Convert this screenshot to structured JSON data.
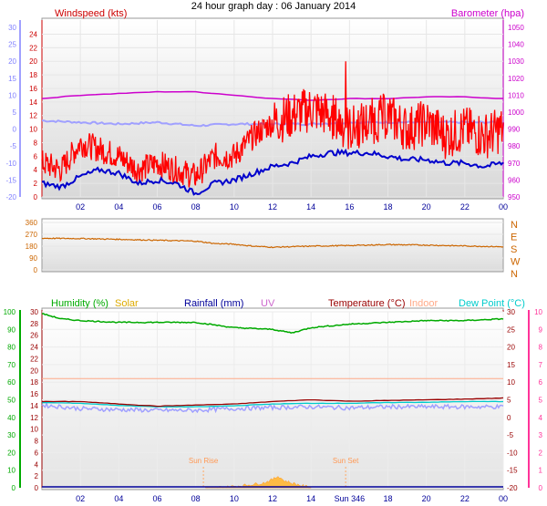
{
  "title": "24 hour graph day : 06 January 2014",
  "colors": {
    "windspeed": "#ff0000",
    "windspeed_avg": "#0000cc",
    "barometer": "#cc00cc",
    "temp_light": "#a0a0ff",
    "direction": "#cc6600",
    "humidity": "#00aa00",
    "solar": "#ffaa33",
    "rainfall": "#000099",
    "uv": "#cc66cc",
    "temperature": "#990000",
    "indoor": "#ffaa88",
    "dewpoint": "#00cccc",
    "axis_green": "#00aa00",
    "axis_pink": "#ff3399"
  },
  "chart_data": [
    {
      "type": "line",
      "panel": "wind-barometer",
      "title": "24 hour graph day : 06 January 2014",
      "x_ticks": [
        "02",
        "04",
        "06",
        "08",
        "10",
        "12",
        "14",
        "16",
        "18",
        "20",
        "22",
        "00"
      ],
      "left_label": "Windspeed (kts)",
      "right_label": "Barometer (hpa)",
      "left_ticks": [
        "0",
        "2",
        "4",
        "6",
        "8",
        "10",
        "12",
        "14",
        "16",
        "18",
        "20",
        "22",
        "24"
      ],
      "left_ticks_outer": [
        "-20",
        "-15",
        "-10",
        "-5",
        "0",
        "5",
        "10",
        "15",
        "20",
        "25",
        "30"
      ],
      "right_ticks": [
        "950",
        "960",
        "970",
        "980",
        "990",
        "1000",
        "1010",
        "1020",
        "1030",
        "1040",
        "1050"
      ],
      "ylim_left": [
        0,
        25
      ],
      "ylim_right": [
        950,
        1050
      ],
      "series": [
        {
          "key": "windspeed_gust",
          "color": "#ff0000",
          "x": [
            0,
            1,
            2,
            3,
            4,
            5,
            6,
            7,
            8,
            9,
            10,
            11,
            12,
            13,
            14,
            15,
            16,
            17,
            18,
            19,
            20,
            21,
            22,
            23,
            24
          ],
          "values": [
            5,
            4,
            8,
            7,
            6,
            4,
            5,
            4,
            3,
            6,
            6,
            9,
            11,
            12,
            13,
            12,
            10,
            11,
            12,
            10,
            11,
            9,
            10,
            9,
            10
          ]
        },
        {
          "key": "windspeed_avg",
          "color": "#0000cc",
          "x": [
            0,
            1,
            2,
            3,
            4,
            5,
            6,
            7,
            8,
            9,
            10,
            11,
            12,
            13,
            14,
            15,
            16,
            17,
            18,
            19,
            20,
            21,
            22,
            23,
            24
          ],
          "values": [
            2,
            1.5,
            3,
            4,
            3.5,
            2,
            2.5,
            2,
            0.5,
            2,
            2.5,
            3.5,
            4.5,
            5,
            6,
            6.5,
            6.5,
            6.5,
            6,
            5.5,
            5.5,
            5,
            5,
            4.5,
            5
          ]
        },
        {
          "key": "barometer",
          "color": "#cc00cc",
          "x": [
            0,
            2,
            4,
            6,
            8,
            10,
            12,
            14,
            16,
            18,
            20,
            22,
            24
          ],
          "values": [
            1008,
            1010,
            1011,
            1012,
            1012,
            1010,
            1008,
            1007,
            1008,
            1008,
            1009,
            1009,
            1008
          ]
        },
        {
          "key": "temperature",
          "color": "#a0a0ff",
          "x": [
            0,
            2,
            4,
            6,
            8,
            10,
            12,
            14,
            16,
            18,
            20,
            22,
            24
          ],
          "values": [
            2.5,
            2,
            1.5,
            2,
            1,
            1.5,
            1.5,
            1.5,
            2,
            2,
            2,
            2,
            2
          ]
        }
      ]
    },
    {
      "type": "line",
      "panel": "wind-direction",
      "left_ticks": [
        "0",
        "90",
        "180",
        "270",
        "360"
      ],
      "right_ticks": [
        "N",
        "E",
        "S",
        "W",
        "N"
      ],
      "ylim": [
        0,
        360
      ],
      "series": [
        {
          "key": "wind_direction",
          "color": "#cc6600",
          "x": [
            0,
            2,
            4,
            6,
            8,
            9,
            10,
            11,
            12,
            14,
            16,
            18,
            20,
            22,
            24
          ],
          "values": [
            240,
            238,
            232,
            225,
            218,
            200,
            195,
            180,
            172,
            180,
            185,
            192,
            188,
            182,
            175
          ]
        }
      ]
    },
    {
      "type": "line",
      "panel": "humidity-temperature",
      "legend": [
        "Humidity (%)",
        "Solar",
        "Rainfall (mm)",
        "UV",
        "Temperature (°C)",
        "Indoor",
        "Dew Point (°C)"
      ],
      "left_ticks": [
        "0",
        "10",
        "20",
        "30",
        "40",
        "50",
        "60",
        "70",
        "80",
        "90",
        "100"
      ],
      "left_ticks_inner": [
        "0",
        "2",
        "4",
        "6",
        "8",
        "10",
        "12",
        "14",
        "16",
        "18",
        "20",
        "22",
        "24",
        "26",
        "28",
        "30"
      ],
      "right_ticks": [
        "-20",
        "-15",
        "-10",
        "-5",
        "0",
        "5",
        "10",
        "15",
        "20",
        "25",
        "30"
      ],
      "right_ticks_outer": [
        "0",
        "1",
        "2",
        "3",
        "4",
        "5",
        "6",
        "7",
        "8",
        "9",
        "10"
      ],
      "ylim_left": [
        0,
        100
      ],
      "ylim_right": [
        -20,
        30
      ],
      "annotations": [
        "Sun Rise",
        "Sun Set"
      ],
      "x_ticks": [
        "02",
        "04",
        "06",
        "08",
        "10",
        "12",
        "14",
        "Sun 346",
        "18",
        "20",
        "22",
        "00"
      ],
      "series": [
        {
          "key": "humidity",
          "color": "#00aa00",
          "x": [
            0,
            1,
            2,
            4,
            6,
            8,
            10,
            12,
            13,
            14,
            16,
            18,
            20,
            22,
            24
          ],
          "values": [
            99,
            96,
            95,
            94,
            94,
            94,
            91,
            90,
            88,
            91,
            93,
            94,
            95,
            95,
            96
          ]
        },
        {
          "key": "temperature",
          "color": "#990000",
          "x": [
            0,
            2,
            4,
            6,
            8,
            10,
            12,
            14,
            16,
            18,
            20,
            22,
            24
          ],
          "values": [
            4.5,
            4.5,
            3.8,
            3.2,
            3.5,
            3.8,
            4.5,
            5,
            4.6,
            4.8,
            5,
            5.2,
            5.5
          ]
        },
        {
          "key": "dewpoint",
          "color": "#00cccc",
          "x": [
            0,
            2,
            4,
            6,
            8,
            10,
            12,
            14,
            16,
            18,
            20,
            22,
            24
          ],
          "values": [
            4.2,
            4,
            3.4,
            3,
            3,
            3.3,
            3.8,
            4,
            4,
            4.2,
            4.3,
            4.5,
            4.5
          ]
        },
        {
          "key": "indoor",
          "color": "#ffaa88",
          "x": [
            0,
            24
          ],
          "values": [
            11,
            11
          ]
        },
        {
          "key": "temperature_raw",
          "color": "#a0a0ff",
          "x": [
            0,
            2,
            4,
            6,
            8,
            10,
            12,
            14,
            16,
            18,
            20,
            22,
            24
          ],
          "values": [
            3.5,
            2.5,
            2.2,
            2,
            2,
            2.5,
            2.8,
            3,
            2.7,
            3,
            3,
            3,
            3
          ]
        },
        {
          "key": "solar",
          "color": "#ffaa33",
          "x": [
            8.5,
            9.5,
            10.5,
            11.5,
            12,
            12.3,
            12.6,
            13,
            13.5,
            14
          ],
          "values": [
            0,
            0.3,
            1,
            2,
            3.5,
            5,
            3,
            2,
            1,
            0
          ]
        }
      ]
    }
  ]
}
